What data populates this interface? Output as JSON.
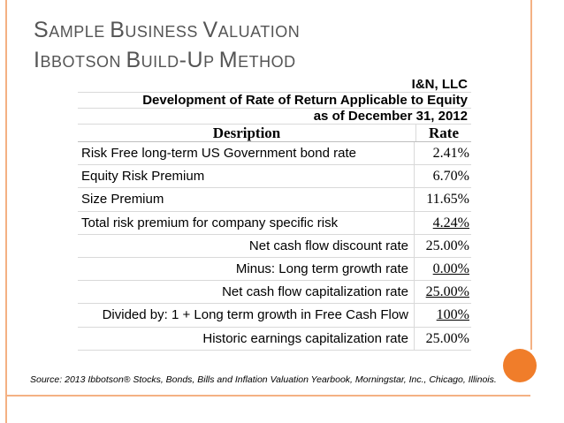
{
  "colors": {
    "accent": "#f4b183",
    "circle": "#f07d2a",
    "title": "#555555"
  },
  "title": {
    "line1": [
      {
        "cap": "S",
        "rest": "AMPLE "
      },
      {
        "cap": "B",
        "rest": "USINESS "
      },
      {
        "cap": "V",
        "rest": "ALUATION"
      }
    ],
    "line2": [
      {
        "cap": "I",
        "rest": "BBOTSON "
      },
      {
        "cap": "B",
        "rest": "UILD"
      },
      {
        "cap": "-U",
        "rest": "P "
      },
      {
        "cap": "M",
        "rest": "ETHOD"
      }
    ]
  },
  "table": {
    "company": "I&N, LLC",
    "heading": "Development of Rate of Return Applicable to Equity",
    "as_of": "as of December 31, 2012",
    "col_desc": "Desription",
    "col_rate": "Rate",
    "rows": [
      {
        "desc": "Risk Free long-term US Government bond rate",
        "rate": "2.41%",
        "align": "left",
        "underline": false
      },
      {
        "desc": "Equity Risk Premium",
        "rate": "6.70%",
        "align": "left",
        "underline": false
      },
      {
        "desc": "Size Premium",
        "rate": "11.65%",
        "align": "left",
        "underline": false
      },
      {
        "desc": "Total risk premium for company specific risk",
        "rate": "4.24%",
        "align": "left",
        "underline": true
      },
      {
        "desc": "Net cash flow discount rate",
        "rate": "25.00%",
        "align": "right",
        "underline": false
      },
      {
        "desc": "Minus: Long term growth rate",
        "rate": "0.00%",
        "align": "right",
        "underline": true
      },
      {
        "desc": "Net cash flow capitalization rate",
        "rate": "25.00%",
        "align": "right",
        "underline": true
      },
      {
        "desc": "Divided by: 1 + Long term growth in Free Cash Flow",
        "rate": "100%",
        "align": "right",
        "underline": true
      },
      {
        "desc": "Historic earnings capitalization rate",
        "rate": "25.00%",
        "align": "right",
        "underline": false
      }
    ]
  },
  "source": "Source: 2013 Ibbotson® Stocks, Bonds, Bills and Inflation Valuation Yearbook, Morningstar, Inc., Chicago, Illinois."
}
